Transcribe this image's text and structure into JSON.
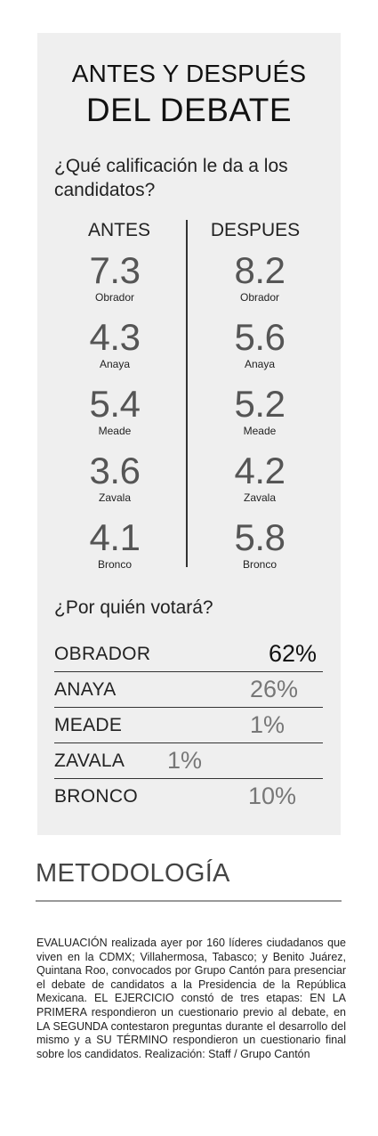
{
  "header": {
    "title_line1": "ANTES Y DESPUÉS",
    "title_line2": "DEL DEBATE"
  },
  "section1": {
    "question": "¿Qué calificación le da a los candidatos?",
    "before_label": "ANTES",
    "after_label": "DESPUES"
  },
  "section2": {
    "question": "¿Por quién votará?"
  },
  "chart_data": [
    {
      "type": "table",
      "title": "¿Qué calificación le da a los candidatos?",
      "columns": [
        "ANTES",
        "DESPUES"
      ],
      "rows": [
        {
          "candidate": "Obrador",
          "before": "7.3",
          "after": "8.2"
        },
        {
          "candidate": "Anaya",
          "before": "4.3",
          "after": "5.6"
        },
        {
          "candidate": "Meade",
          "before": "5.4",
          "after": "5.2"
        },
        {
          "candidate": "Zavala",
          "before": "3.6",
          "after": "4.2"
        },
        {
          "candidate": "Bronco",
          "before": "4.1",
          "after": "5.8"
        }
      ]
    },
    {
      "type": "bar",
      "title": "¿Por quién votará?",
      "categories": [
        "OBRADOR",
        "ANAYA",
        "MEADE",
        "ZAVALA",
        "BRONCO"
      ],
      "values": [
        62,
        26,
        1,
        1,
        10
      ],
      "labels": [
        "62%",
        "26%",
        "1%",
        "1%",
        "10%"
      ]
    }
  ],
  "methodology": {
    "title": "METODOLOGÍA",
    "text": "EVALUACIÓN realizada ayer por 160 líderes ciudadanos que viven en la CDMX; Villahermosa, Tabasco; y Benito Juárez, Quintana Roo, convocados por Grupo Cantón para presenciar el debate de candidatos a la Presidencia de la República Mexicana. EL EJERCICIO constó de tres etapas: EN LA PRIMERA respondieron un cuestionario previo al debate, en LA SEGUNDA contestaron preguntas durante el desarrollo del mismo y a SU TÉRMINO respondieron un cuestionario final sobre los candidatos. Realización: Staff / Grupo Cantón"
  }
}
